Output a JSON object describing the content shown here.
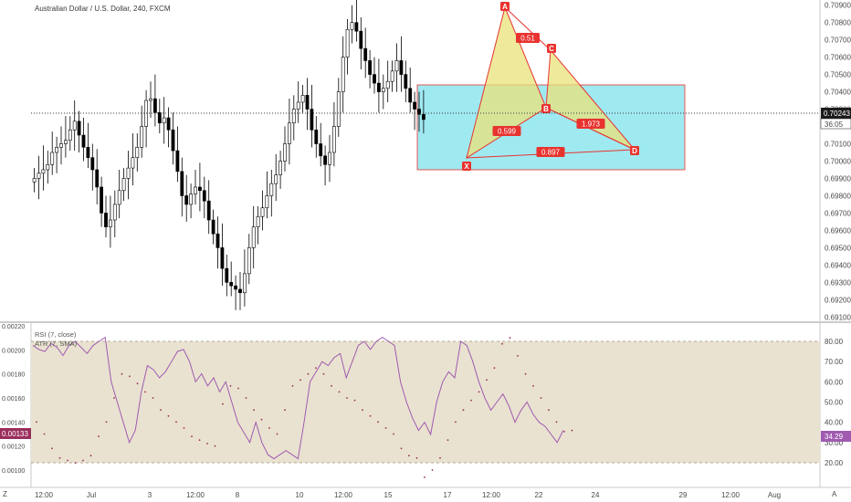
{
  "chart_data": [
    {
      "type": "candlestick",
      "title": "Australian Dollar / U.S. Dollar, 240, FXCM",
      "y_ticks": [
        "0.70900",
        "0.70800",
        "0.70700",
        "0.70600",
        "0.70500",
        "0.70400",
        "0.70300",
        "0.70100",
        "0.70000",
        "0.69900",
        "0.69800",
        "0.69700",
        "0.69600",
        "0.69500",
        "0.69400",
        "0.69300",
        "0.69200",
        "0.69100"
      ],
      "ylim": [
        0.6907,
        0.7093
      ],
      "last_price": "0.70243",
      "countdown": "36:05",
      "x_ticks": [
        "12:00",
        "Jul",
        "3",
        "12:00",
        "8",
        "10",
        "12:00",
        "15",
        "17",
        "12:00",
        "22",
        "24",
        "29",
        "12:00",
        "Aug"
      ],
      "pattern": {
        "points": [
          {
            "label": "X",
            "bar": 62,
            "price": 0.6997
          },
          {
            "label": "A",
            "bar": 72,
            "price": 0.7087
          },
          {
            "label": "B",
            "bar": 79,
            "price": 0.7039
          },
          {
            "label": "C",
            "bar": 83,
            "price": 0.7059
          },
          {
            "label": "D",
            "bar": 94,
            "price": 0.7011
          }
        ],
        "ratios": [
          {
            "label": "0.51",
            "between": "A-C"
          },
          {
            "label": "0.599",
            "between": "X-B"
          },
          {
            "label": "1.973",
            "between": "B-D"
          },
          {
            "label": "0.897",
            "between": "X-D"
          }
        ],
        "zone": {
          "price_high": 0.7044,
          "price_low": 0.6995,
          "bar_start": 56,
          "bar_end": 100
        }
      }
    },
    {
      "type": "line",
      "legend": [
        "RSI (7, close)",
        "ATR (7, SMA)"
      ],
      "rsi_ticks": [
        "80.00",
        "70.00",
        "60.00",
        "50.00",
        "40.00",
        "30.00",
        "20.00"
      ],
      "rsi_last": "34.29",
      "atr_ticks": [
        "0.00220",
        "0.00200",
        "0.00180",
        "0.00160",
        "0.00140",
        "0.00120",
        "0.00100"
      ],
      "atr_last": "0.00133"
    }
  ],
  "ui": {
    "left_corner": "Z",
    "right_corner": "A"
  },
  "colors": {
    "up": "#ffffff",
    "down": "#000000",
    "pattern_red": "#e8332f",
    "zone_fill": "#8ee5ef",
    "pattern_fill": "#e9e27a",
    "rsi_line": "#a05bb0",
    "atr_dots": "#9a2d5b",
    "rsi_band": "#e9e2d0"
  }
}
